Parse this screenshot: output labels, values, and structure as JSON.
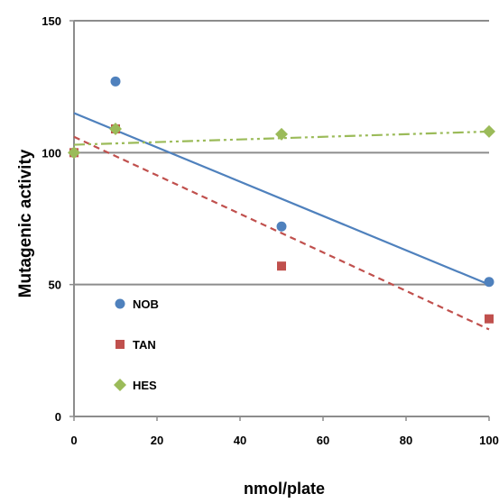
{
  "chart_data": {
    "type": "scatter",
    "xlabel": "nmol/plate",
    "ylabel": "Mutagenic activity",
    "xlim": [
      0,
      100
    ],
    "ylim": [
      0,
      150
    ],
    "x_ticks": [
      "0",
      "20",
      "40",
      "60",
      "80",
      "100"
    ],
    "y_ticks": [
      "0",
      "50",
      "100",
      "150"
    ],
    "grid": "horizontal lines at 50, 100, 150",
    "legend_placement": "lower-left inside plot",
    "series": [
      {
        "name": "NOB",
        "marker": "circle",
        "color": "#4f81bd",
        "points": [
          [
            0,
            100
          ],
          [
            10,
            127
          ],
          [
            50,
            72
          ],
          [
            100,
            51
          ]
        ],
        "trend": {
          "style": "solid",
          "from": [
            0,
            115
          ],
          "to": [
            100,
            50
          ]
        }
      },
      {
        "name": "TAN",
        "marker": "square",
        "color": "#c0504d",
        "points": [
          [
            0,
            100
          ],
          [
            10,
            109
          ],
          [
            50,
            57
          ],
          [
            100,
            37
          ]
        ],
        "trend": {
          "style": "dashed",
          "from": [
            0,
            106
          ],
          "to": [
            100,
            33
          ]
        }
      },
      {
        "name": "HES",
        "marker": "diamond",
        "color": "#9bbb59",
        "points": [
          [
            0,
            100
          ],
          [
            10,
            109
          ],
          [
            50,
            107
          ],
          [
            100,
            108
          ]
        ],
        "trend": {
          "style": "dash-dot-dot",
          "from": [
            0,
            103
          ],
          "to": [
            100,
            108
          ]
        }
      }
    ]
  }
}
